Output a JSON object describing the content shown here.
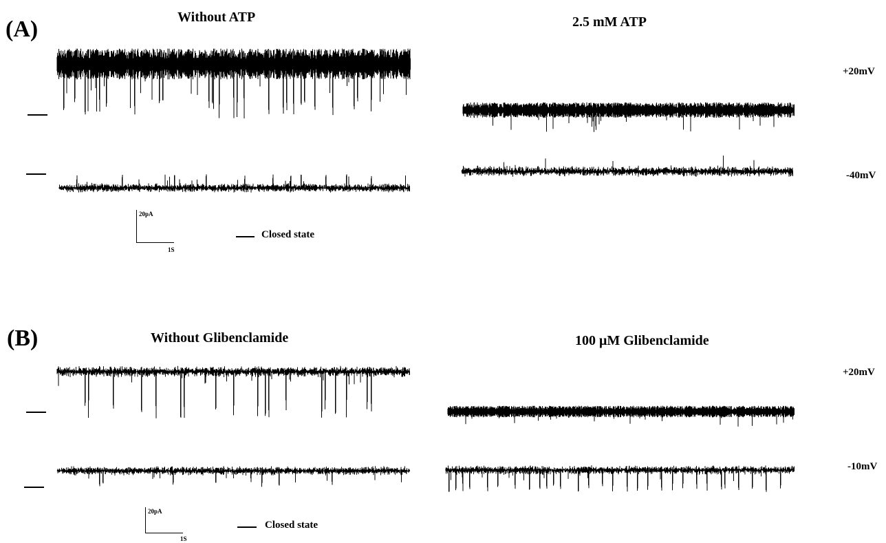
{
  "panels": [
    {
      "label": "(A)",
      "control_title": "Without ATP",
      "treated_title": "2.5 mM ATP",
      "voltages": [
        "+20mV",
        "-40mV"
      ],
      "scale": {
        "current": "20pA",
        "time": "1S"
      },
      "legend": "Closed state"
    },
    {
      "label": "(B)",
      "control_title": "Without Glibenclamide",
      "treated_title": "100 μM Glibenclamide",
      "voltages": [
        "+20mV",
        "-10mV"
      ],
      "scale": {
        "current": "20pA",
        "time": "1S"
      },
      "legend": "Closed state"
    }
  ]
}
